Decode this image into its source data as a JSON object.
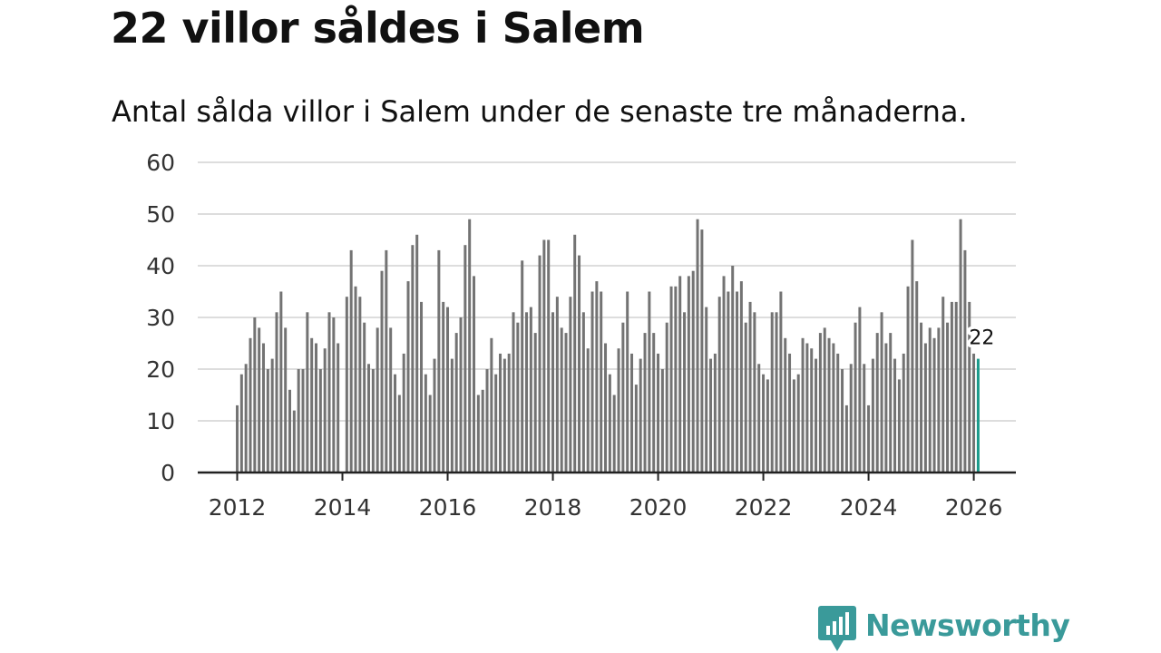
{
  "title": "22 villor såldes i Salem",
  "subtitle": "Antal sålda villor i Salem under de senaste tre månaderna.",
  "logo": {
    "text": "Newsworthy",
    "icon": "newsworthy-logo-icon",
    "color": "#3a9a9a"
  },
  "colors": {
    "bar": "#737373",
    "highlight": "#1a9a8a",
    "grid": "#dddddd",
    "axis": "#222222"
  },
  "chart_data": {
    "type": "bar",
    "title": "22 villor såldes i Salem",
    "subtitle": "Antal sålda villor i Salem under de senaste tre månaderna.",
    "xlabel": "",
    "ylabel": "",
    "x_start": 2012.0,
    "x_step": 0.08333,
    "xlim": [
      2011.25,
      2026.8
    ],
    "ylim": [
      0,
      60
    ],
    "yticks": [
      0,
      10,
      20,
      30,
      40,
      50,
      60
    ],
    "yticklabels": [
      "0",
      "10",
      "20",
      "30",
      "40",
      "50",
      "60"
    ],
    "xticks": [
      2012,
      2014,
      2016,
      2018,
      2020,
      2022,
      2024,
      2026
    ],
    "xticklabels": [
      "2012",
      "2014",
      "2016",
      "2018",
      "2020",
      "2022",
      "2024",
      "2026"
    ],
    "grid": true,
    "values": [
      13,
      19,
      21,
      26,
      30,
      28,
      25,
      20,
      22,
      31,
      35,
      28,
      16,
      12,
      20,
      20,
      31,
      26,
      25,
      20,
      24,
      31,
      30,
      25,
      0,
      34,
      43,
      36,
      34,
      29,
      21,
      20,
      28,
      39,
      43,
      28,
      19,
      15,
      23,
      37,
      44,
      46,
      33,
      19,
      15,
      22,
      43,
      33,
      32,
      22,
      27,
      30,
      44,
      49,
      38,
      15,
      16,
      20,
      26,
      19,
      23,
      22,
      23,
      31,
      29,
      41,
      31,
      32,
      27,
      42,
      45,
      45,
      31,
      34,
      28,
      27,
      34,
      46,
      42,
      31,
      24,
      35,
      37,
      35,
      25,
      19,
      15,
      24,
      29,
      35,
      23,
      17,
      22,
      27,
      35,
      27,
      23,
      20,
      29,
      36,
      36,
      38,
      31,
      38,
      39,
      49,
      47,
      32,
      22,
      23,
      34,
      38,
      35,
      40,
      35,
      37,
      29,
      33,
      31,
      21,
      19,
      18,
      31,
      31,
      35,
      26,
      23,
      18,
      19,
      26,
      25,
      24,
      22,
      27,
      28,
      26,
      25,
      23,
      20,
      13,
      21,
      29,
      32,
      21,
      13,
      22,
      27,
      31,
      25,
      27,
      22,
      18,
      23,
      36,
      45,
      37,
      29,
      25,
      28,
      26,
      28,
      34,
      29,
      33,
      33,
      49,
      43,
      33,
      23,
      22
    ],
    "highlight_index": 169,
    "annotation": {
      "index": 169,
      "text": "22"
    }
  }
}
